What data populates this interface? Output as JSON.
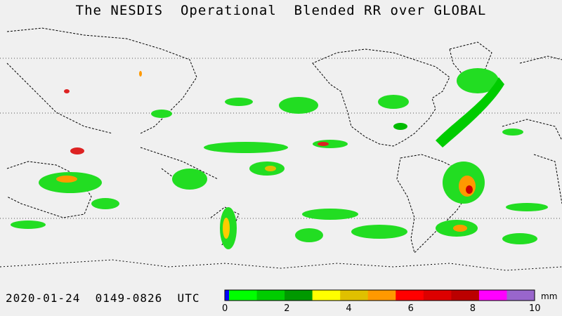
{
  "title": "The NESDIS  Operational  Blended RR over GLOBAL",
  "timestamp": "2020-01-24  0149-0826  UTC",
  "colorbar": {
    "unit": "mm",
    "ticks": [
      "0",
      "2",
      "4",
      "6",
      "8",
      "10"
    ],
    "colors": [
      "#0000ff",
      "#00ff00",
      "#00cc00",
      "#009900",
      "#ffff00",
      "#e0c000",
      "#ff9900",
      "#ff0000",
      "#dd0000",
      "#bb0000",
      "#ff00ff",
      "#9966cc"
    ]
  }
}
